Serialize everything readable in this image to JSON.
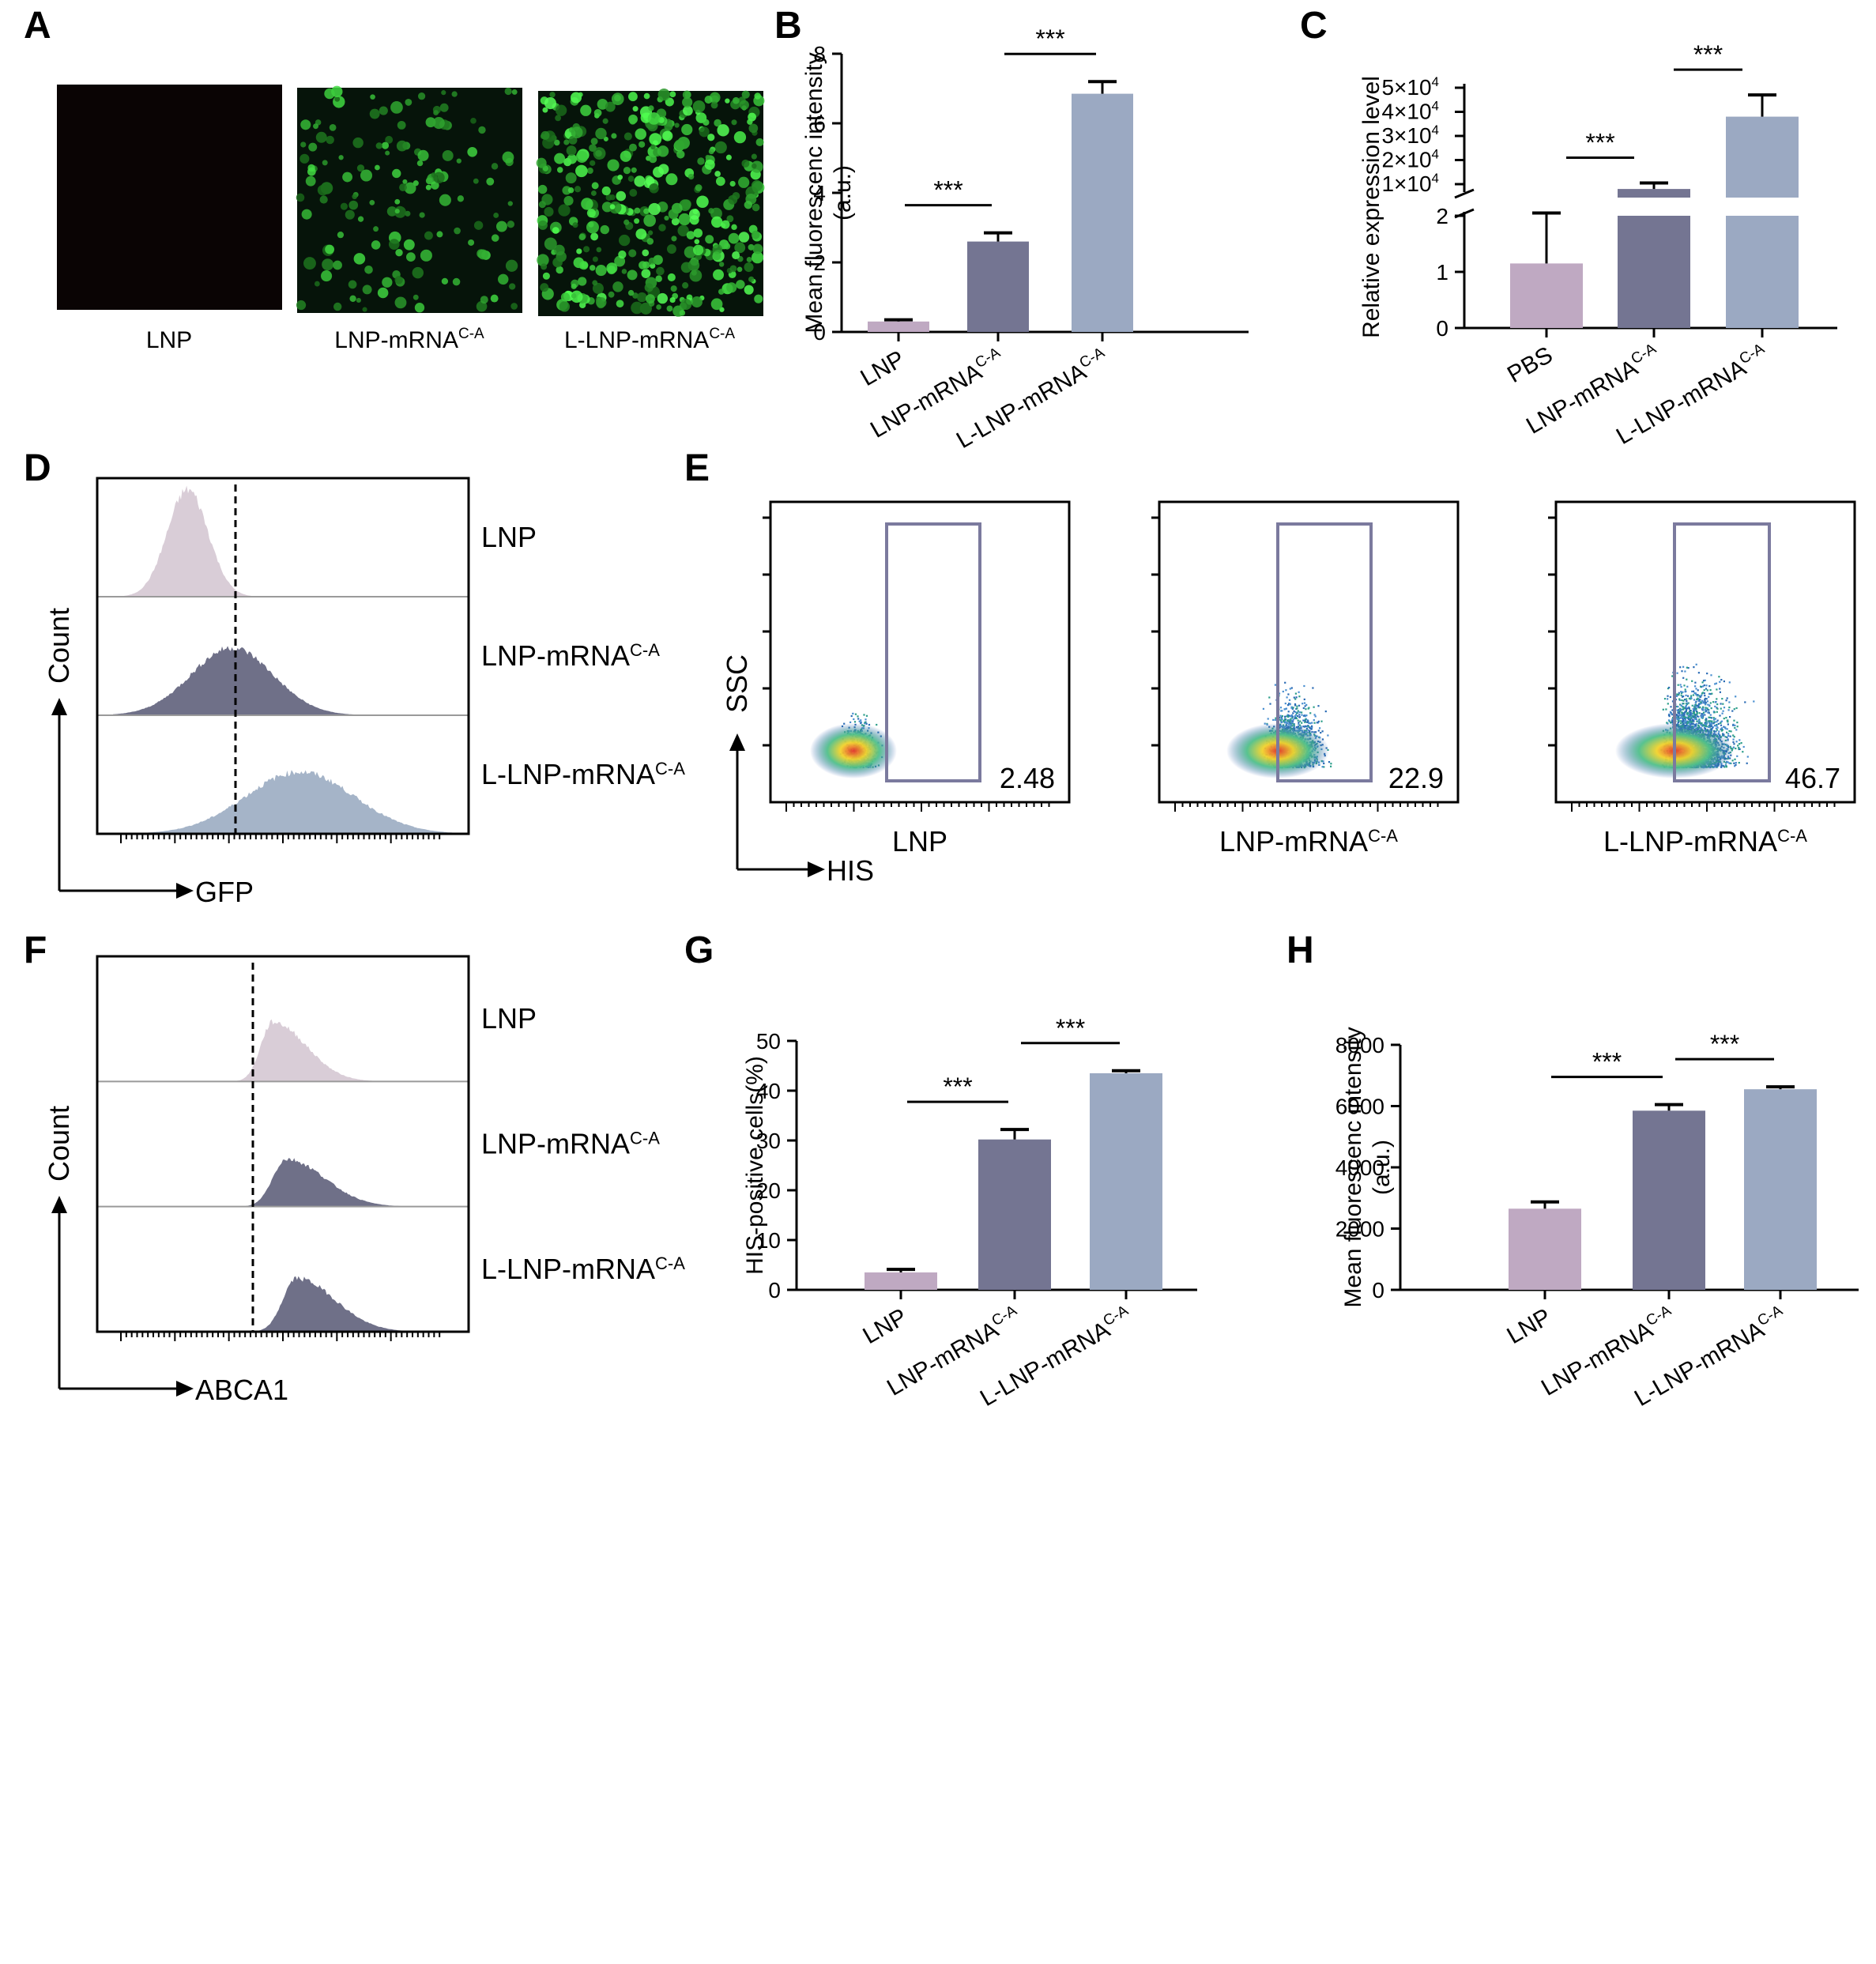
{
  "colors": {
    "c1": "#bfa9c2",
    "c2": "#747592",
    "c3": "#9ba9c2",
    "hist1": "#d9cdd7",
    "hist2": "#6f7088",
    "hist3": "#a5b4c8",
    "gate": "#7b7a9e"
  },
  "panel_letters": [
    "A",
    "B",
    "C",
    "D",
    "E",
    "F",
    "G",
    "H"
  ],
  "panel_a": {
    "labels": [
      "LNP",
      "LNP-mRNA",
      "L-LNP-mRNA"
    ],
    "sup": "C-A"
  },
  "stars": "***",
  "chart_data": [
    {
      "id": "B",
      "type": "bar",
      "categories": [
        "LNP",
        "LNP-mRNA",
        "L-LNP-mRNA"
      ],
      "category_sup": [
        "",
        "C-A",
        "C-A"
      ],
      "values": [
        0.3,
        2.6,
        6.85
      ],
      "errors": [
        0.05,
        0.25,
        0.35
      ],
      "ylabel_lines": [
        "Mean fluorescenc intensity",
        "(a.u.)"
      ],
      "ylim": [
        0,
        8
      ],
      "yticks": [
        "0",
        "2",
        "4",
        "6",
        "8"
      ],
      "significance": [
        {
          "from": 0,
          "to": 1,
          "label": "***"
        },
        {
          "from": 1,
          "to": 2,
          "label": "***"
        }
      ]
    },
    {
      "id": "C",
      "type": "bar",
      "broken_axis": true,
      "categories": [
        "PBS",
        "LNP-mRNA",
        "L-LNP-mRNA"
      ],
      "category_sup": [
        "",
        "C-A",
        "C-A"
      ],
      "values": [
        1.15,
        8000,
        38000
      ],
      "errors": [
        0.9,
        2500,
        9000
      ],
      "ylabel": "Relative expression level",
      "lower_ticks": [
        "0",
        "1",
        "2"
      ],
      "upper_ticks": [
        "1×10",
        "2×10",
        "3×10",
        "4×10",
        "5×10"
      ],
      "upper_tick_exp": "4",
      "significance": [
        {
          "from": 0,
          "to": 1,
          "label": "***"
        },
        {
          "from": 1,
          "to": 2,
          "label": "***"
        }
      ]
    },
    {
      "id": "G",
      "type": "bar",
      "categories": [
        "LNP",
        "LNP-mRNA",
        "L-LNP-mRNA"
      ],
      "category_sup": [
        "",
        "C-A",
        "C-A"
      ],
      "values": [
        3.5,
        30.2,
        43.5
      ],
      "errors": [
        0.6,
        2.0,
        0.5
      ],
      "ylabel": "HIS-positive cells(%)",
      "ylim": [
        0,
        50
      ],
      "yticks": [
        "0",
        "10",
        "20",
        "30",
        "40",
        "50"
      ],
      "significance": [
        {
          "from": 0,
          "to": 1,
          "label": "***"
        },
        {
          "from": 1,
          "to": 2,
          "label": "***"
        }
      ]
    },
    {
      "id": "H",
      "type": "bar",
      "categories": [
        "LNP",
        "LNP-mRNA",
        "L-LNP-mRNA"
      ],
      "category_sup": [
        "",
        "C-A",
        "C-A"
      ],
      "values": [
        2650,
        5850,
        6550
      ],
      "errors": [
        220,
        200,
        80
      ],
      "ylabel_lines": [
        "Mean fluorescenc intensity",
        "(a.u.)"
      ],
      "ylim": [
        0,
        8000
      ],
      "yticks": [
        "0",
        "2000",
        "4000",
        "6000",
        "8000"
      ],
      "significance": [
        {
          "from": 0,
          "to": 1,
          "label": "***"
        },
        {
          "from": 1,
          "to": 2,
          "label": "***"
        }
      ]
    }
  ],
  "panel_d": {
    "xlabel": "GFP",
    "ylabel": "Count",
    "labels": [
      "LNP",
      "LNP-mRNA",
      "L-LNP-mRNA"
    ],
    "sup": "C-A",
    "peaks": [
      0.22,
      0.35,
      0.55
    ]
  },
  "panel_e": {
    "xlabel": "HIS",
    "ylabel": "SSC",
    "plots": [
      {
        "label": "LNP",
        "sup": "",
        "percent": "2.48"
      },
      {
        "label": "LNP-mRNA",
        "sup": "C-A",
        "percent": "22.9"
      },
      {
        "label": "L-LNP-mRNA",
        "sup": "C-A",
        "percent": "46.7"
      }
    ]
  },
  "panel_f": {
    "xlabel": "ABCA1",
    "ylabel": "Count",
    "labels": [
      "LNP",
      "LNP-mRNA",
      "L-LNP-mRNA"
    ],
    "sup": "C-A",
    "peaks": [
      0.47,
      0.51,
      0.54
    ]
  }
}
